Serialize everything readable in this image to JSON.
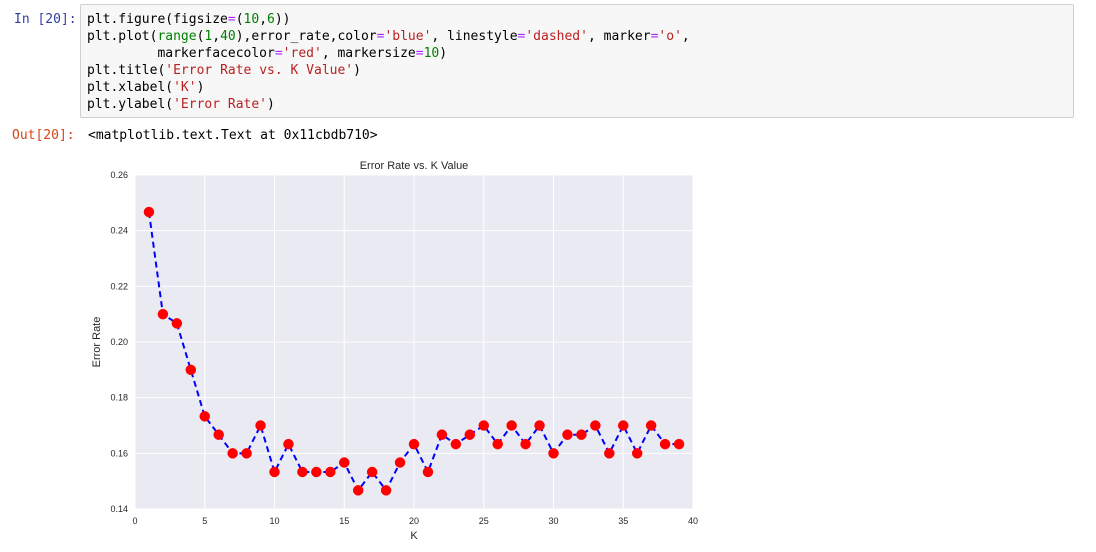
{
  "cell": {
    "in_prompt": "In [20]:",
    "out_prompt": "Out[20]:",
    "code_lines": [
      [
        {
          "t": "plt.figure(figsize",
          "c": ""
        },
        {
          "t": "=",
          "c": "op"
        },
        {
          "t": "(",
          "c": ""
        },
        {
          "t": "10",
          "c": "num"
        },
        {
          "t": ",",
          "c": ""
        },
        {
          "t": "6",
          "c": "num"
        },
        {
          "t": "))",
          "c": ""
        }
      ],
      [
        {
          "t": "plt.plot(",
          "c": ""
        },
        {
          "t": "range",
          "c": "kw"
        },
        {
          "t": "(",
          "c": ""
        },
        {
          "t": "1",
          "c": "num"
        },
        {
          "t": ",",
          "c": ""
        },
        {
          "t": "40",
          "c": "num"
        },
        {
          "t": "),error_rate,color",
          "c": ""
        },
        {
          "t": "=",
          "c": "op"
        },
        {
          "t": "'blue'",
          "c": "str"
        },
        {
          "t": ", linestyle",
          "c": ""
        },
        {
          "t": "=",
          "c": "op"
        },
        {
          "t": "'dashed'",
          "c": "str"
        },
        {
          "t": ", marker",
          "c": ""
        },
        {
          "t": "=",
          "c": "op"
        },
        {
          "t": "'o'",
          "c": "str"
        },
        {
          "t": ",",
          "c": ""
        }
      ],
      [
        {
          "t": "         markerfacecolor",
          "c": ""
        },
        {
          "t": "=",
          "c": "op"
        },
        {
          "t": "'red'",
          "c": "str"
        },
        {
          "t": ", markersize",
          "c": ""
        },
        {
          "t": "=",
          "c": "op"
        },
        {
          "t": "10",
          "c": "num"
        },
        {
          "t": ")",
          "c": ""
        }
      ],
      [
        {
          "t": "plt.title(",
          "c": ""
        },
        {
          "t": "'Error Rate vs. K Value'",
          "c": "str"
        },
        {
          "t": ")",
          "c": ""
        }
      ],
      [
        {
          "t": "plt.xlabel(",
          "c": ""
        },
        {
          "t": "'K'",
          "c": "str"
        },
        {
          "t": ")",
          "c": ""
        }
      ],
      [
        {
          "t": "plt.ylabel(",
          "c": ""
        },
        {
          "t": "'Error Rate'",
          "c": "str"
        },
        {
          "t": ")",
          "c": ""
        }
      ]
    ],
    "output_text": "<matplotlib.text.Text at 0x11cbdb710>"
  },
  "colors": {
    "plot_background": "#eaeaf2",
    "grid": "#ffffff",
    "line": "#0000ff",
    "marker_face": "#ff0000"
  },
  "chart_data": {
    "type": "line",
    "title": "Error Rate vs. K Value",
    "xlabel": "K",
    "ylabel": "Error Rate",
    "xlim": [
      0,
      40
    ],
    "ylim": [
      0.14,
      0.26
    ],
    "xticks": [
      "0",
      "5",
      "10",
      "15",
      "20",
      "25",
      "30",
      "35",
      "40"
    ],
    "yticks": [
      "0.14",
      "0.16",
      "0.18",
      "0.20",
      "0.22",
      "0.24",
      "0.26"
    ],
    "grid": true,
    "linestyle": "dashed",
    "marker": "o",
    "x": [
      1,
      2,
      3,
      4,
      5,
      6,
      7,
      8,
      9,
      10,
      11,
      12,
      13,
      14,
      15,
      16,
      17,
      18,
      19,
      20,
      21,
      22,
      23,
      24,
      25,
      26,
      27,
      28,
      29,
      30,
      31,
      32,
      33,
      34,
      35,
      36,
      37,
      38,
      39
    ],
    "series": [
      {
        "values": [
          0.2467,
          0.21,
          0.2067,
          0.19,
          0.1733,
          0.1667,
          0.16,
          0.16,
          0.17,
          0.1533,
          0.1633,
          0.1533,
          0.1533,
          0.1533,
          0.1567,
          0.1467,
          0.1533,
          0.1467,
          0.1567,
          0.1633,
          0.1533,
          0.1667,
          0.1633,
          0.1667,
          0.17,
          0.1633,
          0.17,
          0.1633,
          0.17,
          0.16,
          0.1667,
          0.1667,
          0.17,
          0.16,
          0.17,
          0.16,
          0.17,
          0.1633,
          0.1633
        ]
      }
    ]
  }
}
